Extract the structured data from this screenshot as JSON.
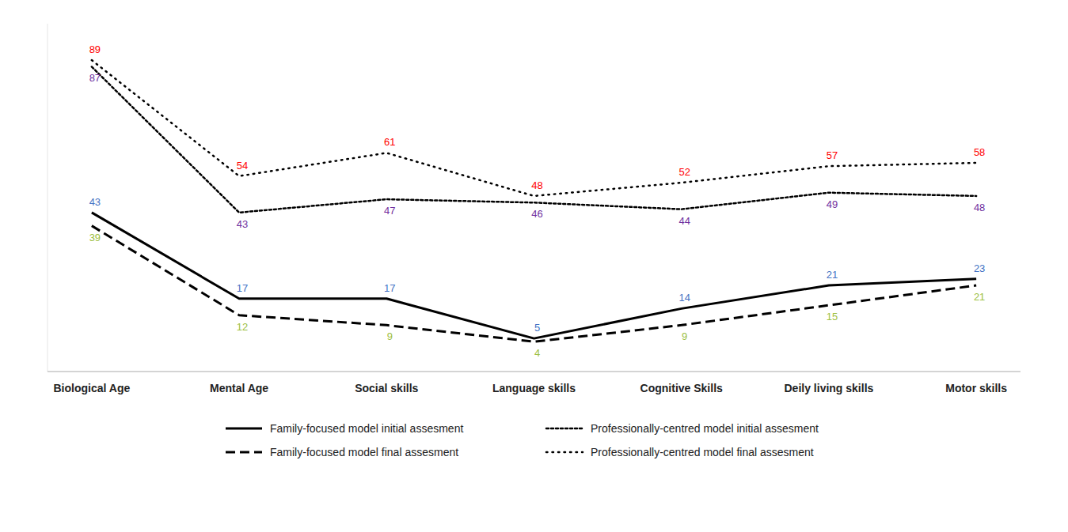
{
  "chart_data": {
    "type": "line",
    "categories": [
      "Biological Age",
      "Mental Age",
      "Social skills",
      "Language skills",
      "Cognitive Skills",
      "Deily living skills",
      "Motor skills"
    ],
    "series": [
      {
        "name": "Family-focused model initial assesment",
        "color": "#4472C4",
        "line_style": "solid",
        "values": [
          43,
          17,
          17,
          5,
          14,
          21,
          23
        ]
      },
      {
        "name": "Family-focused model final assesment",
        "color": "#9DC043",
        "line_style": "dashed",
        "values": [
          39,
          12,
          9,
          4,
          9,
          15,
          21
        ]
      },
      {
        "name": "Professionally-centred model initial assesment",
        "color": "#7030A0",
        "line_style": "dotted",
        "values": [
          87,
          43,
          47,
          46,
          44,
          49,
          48
        ]
      },
      {
        "name": "Professionally-centred model final assesment",
        "color": "#FF0000",
        "line_style": "loosely-dotted",
        "values": [
          89,
          54,
          61,
          48,
          52,
          57,
          58
        ]
      }
    ],
    "ylim": [
      -5,
      100
    ],
    "grid": false,
    "legend": "bottom",
    "data_labels": true,
    "tick_labels": "x"
  }
}
